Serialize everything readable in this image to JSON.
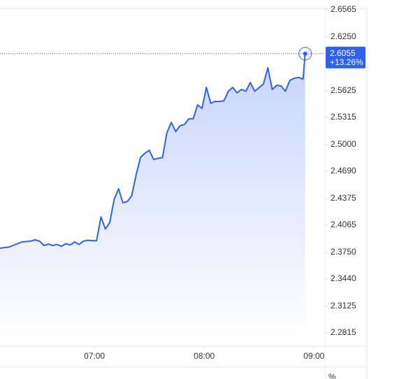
{
  "chart_data": {
    "type": "line",
    "x": [
      6.14,
      6.18,
      6.22,
      6.26,
      6.3,
      6.34,
      6.38,
      6.42,
      6.46,
      6.5,
      6.54,
      6.58,
      6.62,
      6.66,
      6.7,
      6.74,
      6.78,
      6.82,
      6.86,
      6.9,
      6.94,
      6.98,
      7.02,
      7.06,
      7.1,
      7.14,
      7.18,
      7.22,
      7.26,
      7.3,
      7.34,
      7.38,
      7.42,
      7.46,
      7.5,
      7.54,
      7.58,
      7.62,
      7.66,
      7.7,
      7.74,
      7.78,
      7.82,
      7.86,
      7.9,
      7.94,
      7.98,
      8.02,
      8.06,
      8.1,
      8.14,
      8.18,
      8.22,
      8.26,
      8.3,
      8.34,
      8.38,
      8.42,
      8.46,
      8.5,
      8.54,
      8.58,
      8.62,
      8.66,
      8.7,
      8.74,
      8.78,
      8.82,
      8.86,
      8.9,
      8.92
    ],
    "values": [
      2.3797,
      2.3805,
      2.381,
      2.383,
      2.385,
      2.387,
      2.3875,
      2.388,
      2.3895,
      2.388,
      2.383,
      2.3845,
      2.383,
      2.384,
      2.382,
      2.385,
      2.3835,
      2.387,
      2.384,
      2.388,
      2.389,
      2.3885,
      2.3885,
      2.4162,
      2.402,
      2.4097,
      2.4365,
      2.4487,
      2.4325,
      2.434,
      2.4406,
      2.4649,
      2.4852,
      2.49,
      2.4934,
      2.4828,
      2.484,
      2.485,
      2.5136,
      2.5258,
      2.5153,
      2.5218,
      2.5234,
      2.5299,
      2.53,
      2.5461,
      2.542,
      2.5664,
      2.548,
      2.5502,
      2.55,
      2.551,
      2.562,
      2.5664,
      2.56,
      2.564,
      2.562,
      2.5721,
      2.562,
      2.566,
      2.5705,
      2.5891,
      2.564,
      2.5688,
      2.568,
      2.562,
      2.5745,
      2.5769,
      2.578,
      2.576,
      2.6055
    ],
    "color": "#2f62e8",
    "change_label": "+13.26%",
    "xlim": [
      6.14,
      9.1
    ],
    "xticks": [
      {
        "value": 7,
        "label": "07:00"
      },
      {
        "value": 8,
        "label": "08:00"
      },
      {
        "value": 9,
        "label": "09:00"
      }
    ],
    "ylim": [
      2.2661,
      2.6581
    ],
    "yticks": [
      2.6565,
      {
        "value": 2.625,
        "label": "2.6250"
      },
      2.5625,
      2.5315,
      {
        "value": 2.5,
        "label": "2.5000"
      },
      {
        "value": 2.469,
        "label": "2.4690"
      },
      2.4375,
      2.4065,
      {
        "value": 2.375,
        "label": "2.3750"
      },
      {
        "value": 2.344,
        "label": "2.3440"
      },
      2.3125,
      2.2815
    ],
    "percent_toggle": "%"
  }
}
